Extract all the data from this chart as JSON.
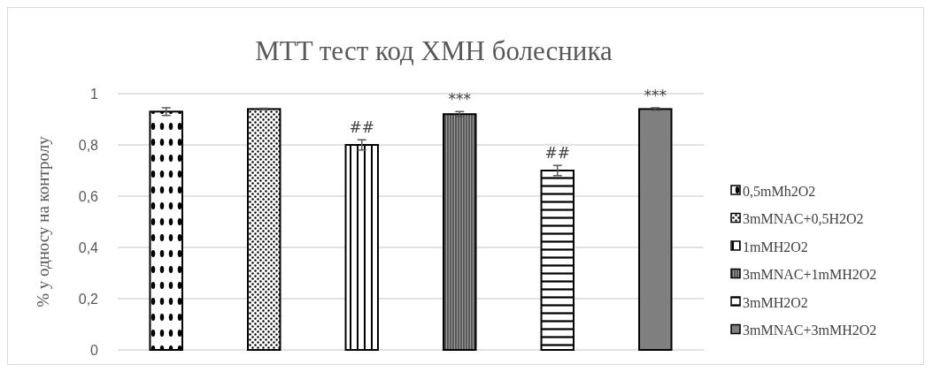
{
  "chart_data": {
    "type": "bar",
    "title": "MTT тест код ХМН болесника",
    "ylabel": "% у односу на контролу",
    "categories": [
      null
    ],
    "ylim": [
      0,
      1
    ],
    "yticks": [
      0,
      {
        "value": 0.2,
        "label": "0,2"
      },
      {
        "value": 0.4,
        "label": "0,4"
      },
      {
        "value": 0.6,
        "label": "0,6"
      },
      {
        "value": 0.8,
        "label": "0,8"
      },
      1
    ],
    "grid": "y",
    "legend": "right",
    "series": [
      {
        "name": "0,5mMh2O2",
        "color": "#000000",
        "values": [
          0.93
        ],
        "errors": [
          0.015
        ]
      },
      {
        "name": "3mMNAC+0,5H2O2",
        "color": "#000000",
        "values": [
          0.94
        ],
        "errors": [
          0.003
        ]
      },
      {
        "name": "1mMH2O2",
        "color": "#000000",
        "values": [
          0.8
        ],
        "errors": [
          0.02
        ],
        "value_labels": [
          "##"
        ]
      },
      {
        "name": "3mMNAC+1mMH2O2",
        "color": "#000000",
        "values": [
          0.92
        ],
        "errors": [
          0.01
        ],
        "value_labels": [
          "***"
        ]
      },
      {
        "name": "3mMH2O2",
        "color": "#000000",
        "values": [
          0.7
        ],
        "errors": [
          0.02
        ],
        "value_labels": [
          "##"
        ]
      },
      {
        "name": "3mMNAC+3mMH2O2",
        "color": "#000000",
        "values": [
          0.94
        ],
        "errors": [
          0.005
        ],
        "value_labels": [
          "***"
        ]
      }
    ]
  }
}
